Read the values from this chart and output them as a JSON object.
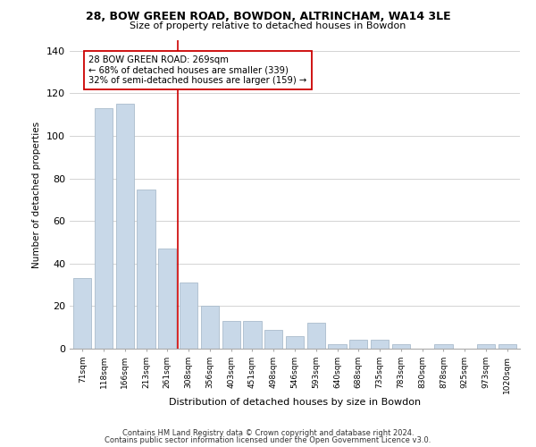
{
  "title1": "28, BOW GREEN ROAD, BOWDON, ALTRINCHAM, WA14 3LE",
  "title2": "Size of property relative to detached houses in Bowdon",
  "xlabel": "Distribution of detached houses by size in Bowdon",
  "ylabel": "Number of detached properties",
  "bar_labels": [
    "71sqm",
    "118sqm",
    "166sqm",
    "213sqm",
    "261sqm",
    "308sqm",
    "356sqm",
    "403sqm",
    "451sqm",
    "498sqm",
    "546sqm",
    "593sqm",
    "640sqm",
    "688sqm",
    "735sqm",
    "783sqm",
    "830sqm",
    "878sqm",
    "925sqm",
    "973sqm",
    "1020sqm"
  ],
  "bar_values": [
    33,
    113,
    115,
    75,
    47,
    31,
    20,
    13,
    13,
    9,
    6,
    12,
    2,
    4,
    4,
    2,
    0,
    2,
    0,
    2,
    2
  ],
  "bar_color": "#c8d8e8",
  "bar_edge_color": "#aabccc",
  "vline_x": 4.5,
  "vline_color": "#cc0000",
  "annotation_line1": "28 BOW GREEN ROAD: 269sqm",
  "annotation_line2": "← 68% of detached houses are smaller (339)",
  "annotation_line3": "32% of semi-detached houses are larger (159) →",
  "box_edge_color": "#cc0000",
  "ylim": [
    0,
    145
  ],
  "yticks": [
    0,
    20,
    40,
    60,
    80,
    100,
    120,
    140
  ],
  "footer1": "Contains HM Land Registry data © Crown copyright and database right 2024.",
  "footer2": "Contains public sector information licensed under the Open Government Licence v3.0.",
  "bg_color": "#ffffff",
  "grid_color": "#cccccc"
}
